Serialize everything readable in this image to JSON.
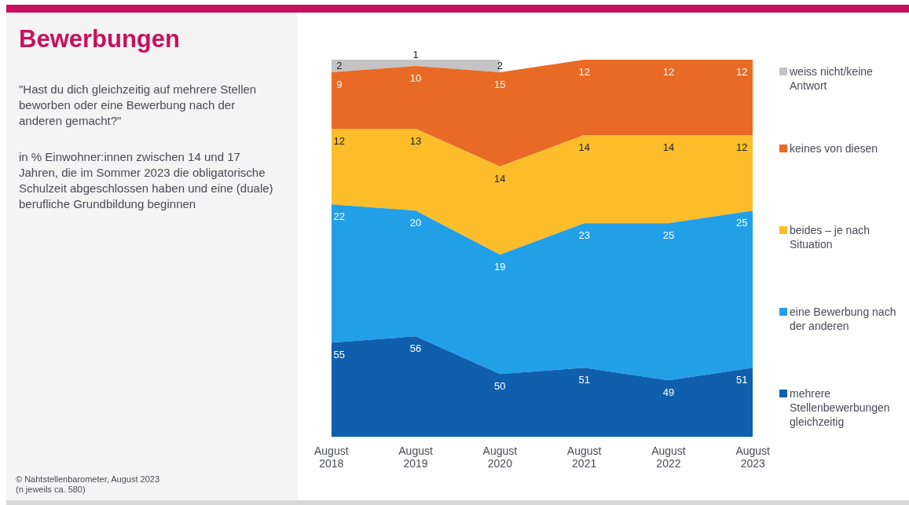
{
  "chart_data": {
    "type": "area",
    "title": "Bewerbungen",
    "subtitle": "\"Hast du dich gleichzeitig auf mehrere Stellen beworben oder eine Bewerbung nach der anderen gemacht?\"",
    "ylabel": "in % Einwohner:innen zwischen 14 und 17 Jahren, die im Sommer 2023 die obligatorische Schulzeit abgeschlossen haben und eine (duale) berufliche Grundbildung beginnen",
    "annotations": [
      "© Nahtstellenbarometer, August 2023",
      "(n jeweils ca. 580)"
    ],
    "categories": [
      "August 2018",
      "August 2019",
      "August 2020",
      "August 2021",
      "August 2022",
      "August 2023"
    ],
    "stacked": true,
    "tick_labels": "x",
    "grid": false,
    "legend": "right",
    "series": [
      {
        "name": "mehrere Stellenbewerbungen gleichzeitig",
        "color": "#0f5fad",
        "values": [
          55,
          56,
          50,
          51,
          49,
          51
        ],
        "value_labels": [
          "55",
          "56",
          "50",
          "51",
          "49",
          "51"
        ]
      },
      {
        "name": "eine Bewerbung nach der anderen",
        "color": "#21a0e8",
        "values": [
          22,
          20,
          19,
          23,
          25,
          25
        ],
        "value_labels": [
          "22",
          "20",
          "19",
          "23",
          "25",
          "25"
        ]
      },
      {
        "name": "beides – je nach Situation",
        "color": "#fbbd2a",
        "values": [
          12,
          13,
          14,
          14,
          14,
          12
        ],
        "value_labels": [
          "12",
          "13",
          "14",
          "14",
          "14",
          "12"
        ]
      },
      {
        "name": "keines von diesen",
        "color": "#e96a24",
        "values": [
          9,
          10,
          15,
          12,
          12,
          12
        ],
        "value_labels": [
          "9",
          "10",
          "15",
          "12",
          "12",
          "12"
        ]
      },
      {
        "name": "weiss nicht/keine Antwort",
        "color": "#c4c4c4",
        "values": [
          2,
          1,
          2,
          null,
          null,
          null
        ],
        "value_labels": [
          "2",
          "1",
          "2",
          null,
          null,
          null
        ]
      }
    ]
  }
}
